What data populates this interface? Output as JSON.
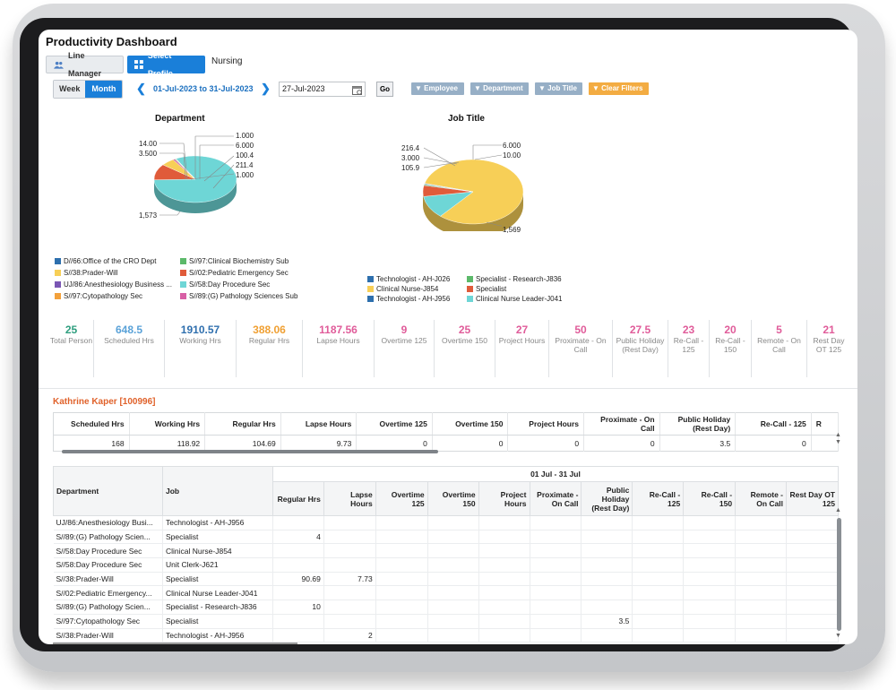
{
  "header": {
    "title": "Productivity Dashboard"
  },
  "tabs": [
    {
      "label": "Line Manager",
      "icon": "users-icon"
    },
    {
      "label": "Select Profile",
      "icon": "grid-icon"
    },
    {
      "label": "Nursing"
    }
  ],
  "period": {
    "week": "Week",
    "month": "Month",
    "range": "01-Jul-2023 to 31-Jul-2023",
    "date_value": "27-Jul-2023",
    "go": "Go"
  },
  "filters": [
    "Employee",
    "Department",
    "Job Title",
    "Clear Filters"
  ],
  "colors": {
    "accent": "#1a7fd9",
    "filter": "#97afc6",
    "clear": "#f3ac42",
    "employee_name": "#e0622b"
  },
  "chart_data": [
    {
      "type": "pie",
      "title": "Department",
      "data_labels": [
        "1.000",
        "6.000",
        "100.4",
        "211.4",
        "1.000",
        "14.00",
        "3.500",
        "1,573"
      ],
      "legend": [
        {
          "label": "D//66:Office of the CRO Dept",
          "color": "#2d6fad"
        },
        {
          "label": "S//38:Prader-Will",
          "color": "#f7cf57"
        },
        {
          "label": "UJ/86:Anesthesiology Business ...",
          "color": "#7a56b4"
        },
        {
          "label": "S//97:Cytopathology Sec",
          "color": "#f3a13b"
        },
        {
          "label": "S//97:Clinical Biochemistry Sub",
          "color": "#5cb96a"
        },
        {
          "label": "S//02:Pediatric Emergency Sec",
          "color": "#e05b3a"
        },
        {
          "label": "S//58:Day Procedure Sec",
          "color": "#6ed6d6"
        },
        {
          "label": "S//89:(G) Pathology Sciences Sub",
          "color": "#d85fa5"
        }
      ],
      "slices": [
        {
          "label": "S//58:Day Procedure Sec",
          "value": 1573,
          "color": "#6ed6d6"
        },
        {
          "label": "S//02:Pediatric Emergency Sec",
          "value": 211.4,
          "color": "#e05b3a"
        },
        {
          "label": "S//38:Prader-Will",
          "value": 100.4,
          "color": "#f7cf57"
        },
        {
          "label": "S//89:(G) Pathology Sciences Sub",
          "value": 14,
          "color": "#d85fa5"
        },
        {
          "label": "S//97:Clinical Biochemistry Sub",
          "value": 6,
          "color": "#5cb96a"
        },
        {
          "label": "S//97:Cytopathology Sec",
          "value": 3.5,
          "color": "#f3a13b"
        },
        {
          "label": "D//66:Office of the CRO Dept",
          "value": 1,
          "color": "#2d6fad"
        },
        {
          "label": "UJ/86:Anesthesiology Business ...",
          "value": 1,
          "color": "#7a56b4"
        }
      ]
    },
    {
      "type": "pie",
      "title": "Job Title",
      "data_labels": [
        "216.4",
        "3.000",
        "105.9",
        "6.000",
        "10.00",
        "1,569"
      ],
      "legend": [
        {
          "label": "Technologist - AH-J026",
          "color": "#2d6fad"
        },
        {
          "label": "Clinical Nurse-J854",
          "color": "#f7cf57"
        },
        {
          "label": "Technologist - AH-J956",
          "color": "#2d6fad"
        },
        {
          "label": "Specialist - Research-J836",
          "color": "#5cb96a"
        },
        {
          "label": "Specialist",
          "color": "#e05b3a"
        },
        {
          "label": "Clinical Nurse Leader-J041",
          "color": "#6ed6d6"
        }
      ],
      "slices": [
        {
          "label": "Clinical Nurse-J854",
          "value": 1569,
          "color": "#f7cf57"
        },
        {
          "label": "Clinical Nurse Leader-J041",
          "value": 216.4,
          "color": "#6ed6d6"
        },
        {
          "label": "Specialist",
          "value": 105.9,
          "color": "#e05b3a"
        },
        {
          "label": "Specialist - Research-J836",
          "value": 10,
          "color": "#5cb96a"
        },
        {
          "label": "Technologist - AH-J956",
          "value": 6,
          "color": "#2d6fad"
        },
        {
          "label": "Technologist - AH-J026",
          "value": 3,
          "color": "#234f86"
        }
      ]
    }
  ],
  "stats": [
    {
      "value": "25",
      "label": "Total Person",
      "color": "#2e9e7e"
    },
    {
      "value": "648.5",
      "label": "Scheduled Hrs",
      "color": "#5aa2d8"
    },
    {
      "value": "1910.57",
      "label": "Working Hrs",
      "color": "#2f6fae"
    },
    {
      "value": "388.06",
      "label": "Regular Hrs",
      "color": "#f0a033"
    },
    {
      "value": "1187.56",
      "label": "Lapse Hours",
      "color": "#e05c9a"
    },
    {
      "value": "9",
      "label": "Overtime 125",
      "color": "#e05c9a"
    },
    {
      "value": "25",
      "label": "Overtime 150",
      "color": "#e05c9a"
    },
    {
      "value": "27",
      "label": "Project Hours",
      "color": "#e05c9a"
    },
    {
      "value": "50",
      "label": "Proximate - On Call",
      "color": "#e05c9a"
    },
    {
      "value": "27.5",
      "label": "Public Holiday (Rest Day)",
      "color": "#e05c9a"
    },
    {
      "value": "23",
      "label": "Re-Call - 125",
      "color": "#e05c9a"
    },
    {
      "value": "20",
      "label": "Re-Call - 150",
      "color": "#e05c9a"
    },
    {
      "value": "5",
      "label": "Remote - On Call",
      "color": "#e05c9a"
    },
    {
      "value": "21",
      "label": "Rest Day OT 125",
      "color": "#e05c9a"
    }
  ],
  "employee": "Kathrine Kaper [100996]",
  "summary": {
    "headers": [
      "Scheduled Hrs",
      "Working Hrs",
      "Regular Hrs",
      "Lapse Hours",
      "Overtime 125",
      "Overtime 150",
      "Project Hours",
      "Proximate - On Call",
      "Public Holiday (Rest Day)",
      "Re-Call - 125",
      "R"
    ],
    "values": [
      "168",
      "118.92",
      "104.69",
      "9.73",
      "0",
      "0",
      "0",
      "0",
      "3.5",
      "0",
      ""
    ]
  },
  "detail": {
    "period": "01 Jul - 31 Jul",
    "col_department": "Department",
    "col_job": "Job",
    "headers": [
      "Regular Hrs",
      "Lapse Hours",
      "Overtime 125",
      "Overtime 150",
      "Project Hours",
      "Proximate - On Call",
      "Public Holiday (Rest Day)",
      "Re-Call - 125",
      "Re-Call - 150",
      "Remote - On Call",
      "Rest Day OT 125"
    ],
    "rows": [
      {
        "dept": "UJ/86:Anesthesiology Busi...",
        "job": "Technologist - AH-J956",
        "vals": [
          "",
          "",
          "",
          "",
          "",
          "",
          "",
          "",
          "",
          "",
          ""
        ]
      },
      {
        "dept": "S//89:(G) Pathology Scien...",
        "job": "Specialist",
        "vals": [
          "4",
          "",
          "",
          "",
          "",
          "",
          "",
          "",
          "",
          "",
          ""
        ]
      },
      {
        "dept": "S//58:Day Procedure Sec",
        "job": "Clinical Nurse-J854",
        "vals": [
          "",
          "",
          "",
          "",
          "",
          "",
          "",
          "",
          "",
          "",
          ""
        ]
      },
      {
        "dept": "S//58:Day Procedure Sec",
        "job": "Unit Clerk-J621",
        "vals": [
          "",
          "",
          "",
          "",
          "",
          "",
          "",
          "",
          "",
          "",
          ""
        ]
      },
      {
        "dept": "S//38:Prader-Will",
        "job": "Specialist",
        "vals": [
          "90.69",
          "7.73",
          "",
          "",
          "",
          "",
          "",
          "",
          "",
          "",
          ""
        ]
      },
      {
        "dept": "S//02:Pediatric Emergency...",
        "job": "Clinical Nurse Leader-J041",
        "vals": [
          "",
          "",
          "",
          "",
          "",
          "",
          "",
          "",
          "",
          "",
          ""
        ]
      },
      {
        "dept": "S//89:(G) Pathology Scien...",
        "job": "Specialist - Research-J836",
        "vals": [
          "10",
          "",
          "",
          "",
          "",
          "",
          "",
          "",
          "",
          "",
          ""
        ]
      },
      {
        "dept": "S//97:Cytopathology Sec",
        "job": "Specialist",
        "vals": [
          "",
          "",
          "",
          "",
          "",
          "",
          "3.5",
          "",
          "",
          "",
          ""
        ]
      },
      {
        "dept": "S//38:Prader-Will",
        "job": "Technologist - AH-J956",
        "vals": [
          "",
          "2",
          "",
          "",
          "",
          "",
          "",
          "",
          "",
          "",
          ""
        ]
      }
    ]
  }
}
